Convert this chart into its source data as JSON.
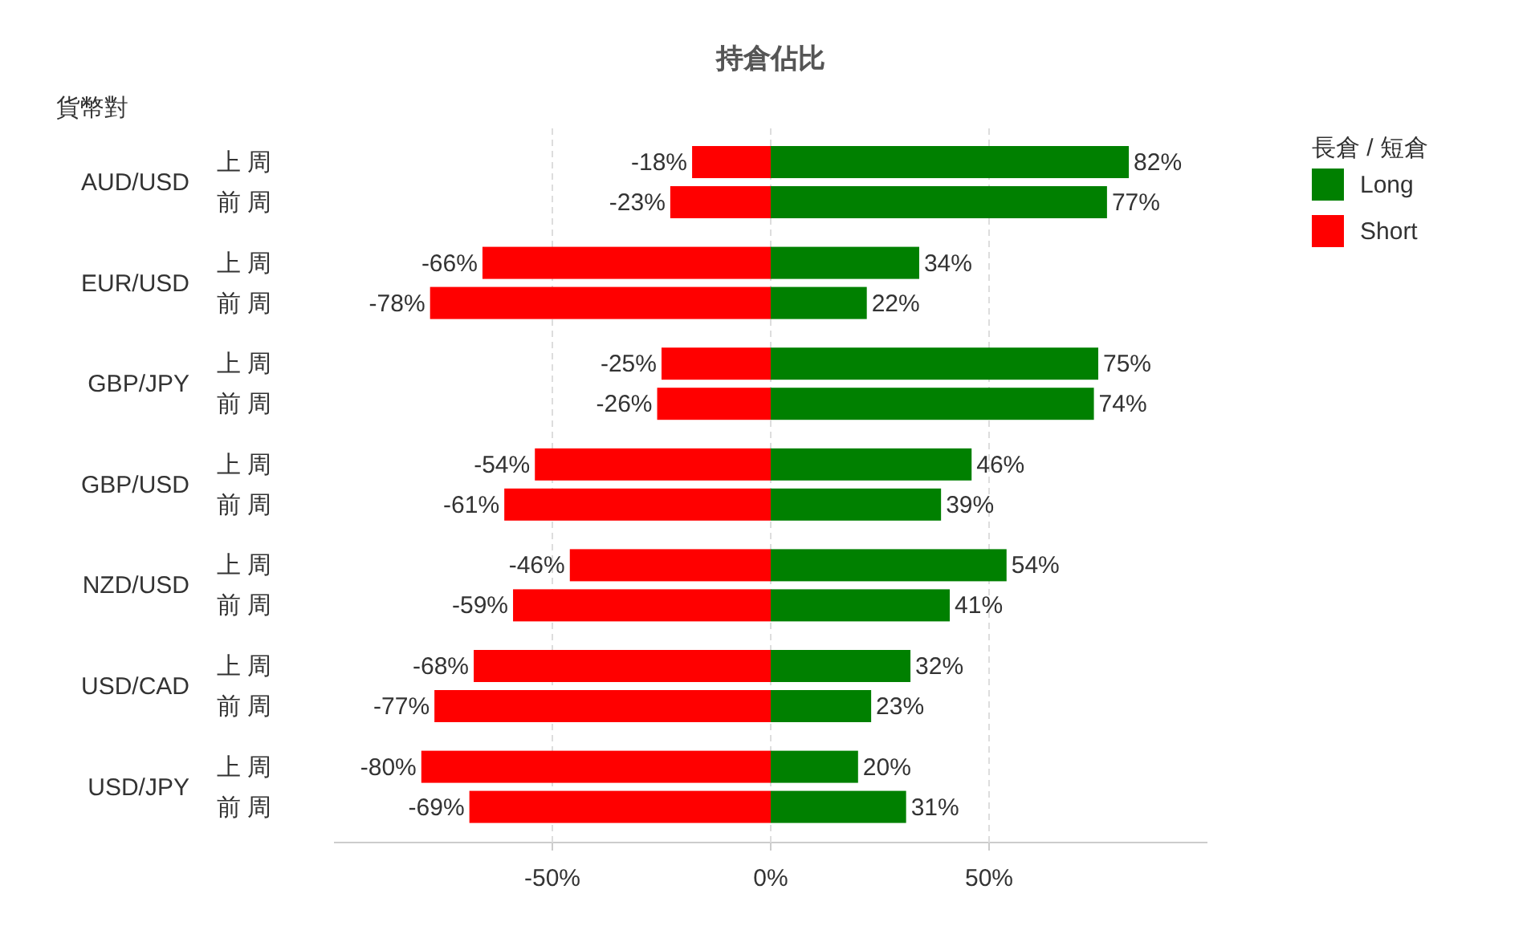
{
  "chart_data": {
    "type": "bar",
    "orientation": "horizontal",
    "stacked": true,
    "title": "持倉佔比",
    "ylabel": "貨幣對",
    "legend_title": "長倉 / 短倉",
    "legend": "top right",
    "grid": "x",
    "categories": [
      "上 周",
      "前 周",
      "上 周",
      "前 周",
      "上 周",
      "前 周",
      "上 周",
      "前 周",
      "上 周",
      "前 周",
      "上 周",
      "前 周",
      "上 周",
      "前 周"
    ],
    "annotations": [
      "AUD/USD",
      "EUR/USD",
      "GBP/JPY",
      "GBP/USD",
      "NZD/USD",
      "USD/CAD",
      "USD/JPY"
    ],
    "xlim": [
      -100,
      100
    ],
    "xticks": [
      {
        "value": -50,
        "label": "-50%"
      },
      {
        "value": 0,
        "label": "0%"
      },
      {
        "value": 50,
        "label": "50%"
      }
    ],
    "series": [
      {
        "name": "Long",
        "color": "#008000",
        "values": [
          82,
          77,
          34,
          22,
          75,
          74,
          46,
          39,
          54,
          41,
          32,
          23,
          20,
          31
        ],
        "value_labels": [
          "82%",
          "77%",
          "34%",
          "22%",
          "75%",
          "74%",
          "46%",
          "39%",
          "54%",
          "41%",
          "32%",
          "23%",
          "20%",
          "31%"
        ]
      },
      {
        "name": "Short",
        "color": "#ff0000",
        "values": [
          -18,
          -23,
          -66,
          -78,
          -25,
          -26,
          -54,
          -61,
          -46,
          -59,
          -68,
          -77,
          -80,
          -69
        ],
        "value_labels": [
          "-18%",
          "-23%",
          "-66%",
          "-78%",
          "-25%",
          "-26%",
          "-54%",
          "-61%",
          "-46%",
          "-59%",
          "-68%",
          "-77%",
          "-80%",
          "-69%"
        ]
      }
    ]
  }
}
